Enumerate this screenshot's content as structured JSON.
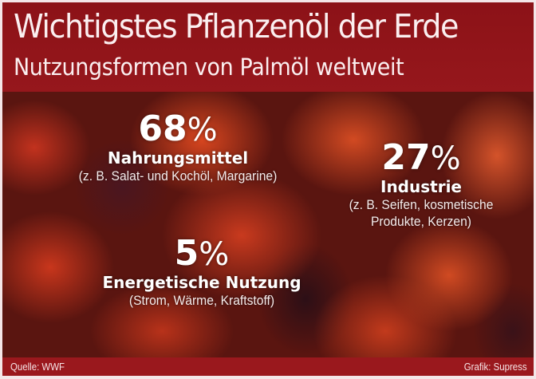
{
  "header": {
    "title": "Wichtigstes Pflanzenöl der Erde",
    "subtitle": "Nutzungsformen von Palmöl weltweit"
  },
  "segments": [
    {
      "value": "68",
      "unit": "%",
      "label": "Nahrungsmittel",
      "description": "(z. B. Salat- und Kochöl, Margarine)"
    },
    {
      "value": "27",
      "unit": "%",
      "label": "Industrie",
      "description_line1": "(z. B. Seifen, kosmetische",
      "description_line2": "Produkte, Kerzen)"
    },
    {
      "value": "5",
      "unit": "%",
      "label": "Energetische Nutzung",
      "description": "(Strom, Wärme, Kraftstoff)"
    }
  ],
  "footer": {
    "source": "Quelle: WWF",
    "credit": "Grafik: Supress"
  },
  "colors": {
    "header_bg": "#8c1217",
    "footer_bg": "#9a181d",
    "border": "#f4e6e8",
    "text": "#ffffff"
  },
  "chart_data": {
    "type": "pie",
    "title": "Wichtigstes Pflanzenöl der Erde",
    "subtitle": "Nutzungsformen von Palmöl weltweit",
    "categories": [
      "Nahrungsmittel",
      "Industrie",
      "Energetische Nutzung"
    ],
    "values": [
      68,
      27,
      5
    ],
    "unit": "%",
    "annotations": [
      "(z. B. Salat- und Kochöl, Margarine)",
      "(z. B. Seifen, kosmetische Produkte, Kerzen)",
      "(Strom, Wärme, Kraftstoff)"
    ],
    "source": "Quelle: WWF",
    "credit": "Grafik: Supress"
  }
}
